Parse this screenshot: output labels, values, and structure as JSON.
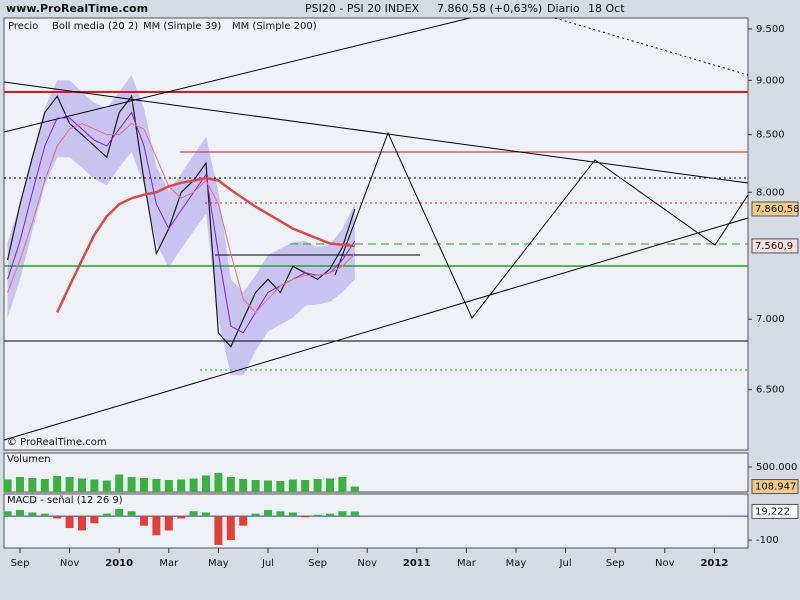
{
  "header": {
    "site": "www.ProRealTime.com",
    "title": "PSI20 - PSI 20 INDEX",
    "quote": "7.860,58 (+0,63%)",
    "period": "Diario",
    "date": "18 Oct"
  },
  "copyright": "© ProRealTime.com",
  "chart_data": [
    {
      "type": "line",
      "log_scale": true,
      "categories": [
        null,
        "Sep",
        null,
        null,
        null,
        "Nov",
        null,
        null,
        null,
        "2010",
        null,
        null,
        null,
        "Mar",
        null,
        null,
        null,
        "May",
        null,
        null,
        null,
        "Jul",
        null,
        null,
        null,
        "Sep",
        null,
        null,
        null,
        "Nov",
        null,
        null,
        null,
        "2011",
        null,
        null,
        null,
        "Mar",
        null,
        null,
        null,
        "May",
        null,
        null,
        null,
        "Jul",
        null,
        null,
        null,
        "Sep",
        null,
        null,
        null,
        "Nov",
        null,
        null,
        null,
        "2012",
        null,
        null
      ],
      "ylim": [
        6100,
        9610
      ],
      "yticks": [
        {
          "value": 9500,
          "label": "9.500"
        },
        {
          "value": 9000,
          "label": "9.000"
        },
        {
          "value": 8500,
          "label": "8.500"
        },
        {
          "value": 8000,
          "label": "8.000"
        },
        {
          "value": 7000,
          "label": "7.000"
        },
        {
          "value": 6500,
          "label": "6.500"
        }
      ],
      "band": {
        "color": "#c9c3f2",
        "upper": [
          7590,
          7900,
          8320,
          8740,
          9000,
          9000,
          8890,
          8790,
          8740,
          8890,
          9050,
          8740,
          8220,
          8010,
          8160,
          8320,
          8480,
          8000,
          7300,
          7200,
          7330,
          7490,
          7540,
          7590,
          7600,
          7550,
          7570,
          7700,
          7900,
          null,
          null,
          null,
          null,
          null,
          null,
          null,
          null,
          null,
          null,
          null,
          null,
          null,
          null,
          null,
          null,
          null,
          null,
          null,
          null,
          null,
          null,
          null,
          null,
          null,
          null,
          null,
          null,
          null,
          null,
          null
        ],
        "lower": [
          7010,
          7300,
          7680,
          8060,
          8300,
          8300,
          8210,
          8110,
          8060,
          8210,
          8350,
          8060,
          7580,
          7390,
          7540,
          7680,
          7820,
          7000,
          6600,
          6600,
          6770,
          6910,
          6960,
          7010,
          7100,
          7110,
          7130,
          7200,
          7300,
          null,
          null,
          null,
          null,
          null,
          null,
          null,
          null,
          null,
          null,
          null,
          null,
          null,
          null,
          null,
          null,
          null,
          null,
          null,
          null,
          null,
          null,
          null,
          null,
          null,
          null,
          null,
          null,
          null,
          null,
          null
        ]
      },
      "series": [
        {
          "name": "Precio",
          "color": "#1a1a1a",
          "width": 1.2,
          "values": [
            7450,
            7900,
            8300,
            8700,
            8850,
            8600,
            8500,
            8400,
            8300,
            8700,
            8850,
            8100,
            7500,
            7700,
            8000,
            8100,
            8250,
            6900,
            6800,
            7000,
            7200,
            7300,
            7200,
            7400,
            7350,
            7300,
            7380,
            7550,
            7860,
            null,
            null,
            null,
            null,
            null,
            null,
            null,
            null,
            null,
            null,
            null,
            null,
            null,
            null,
            null,
            null,
            null,
            null,
            null,
            null,
            null,
            null,
            null,
            null,
            null,
            null,
            null,
            null,
            null,
            null,
            null
          ]
        },
        {
          "name": "Boll media (20 2)",
          "color": "#8a1fc4",
          "width": 1,
          "values": [
            7300,
            7600,
            8000,
            8400,
            8650,
            8650,
            8550,
            8450,
            8400,
            8550,
            8700,
            8400,
            7900,
            7700,
            7850,
            8000,
            8150,
            7500,
            6950,
            6900,
            7050,
            7200,
            7250,
            7300,
            7350,
            7330,
            7350,
            7450,
            7600,
            null,
            null,
            null,
            null,
            null,
            null,
            null,
            null,
            null,
            null,
            null,
            null,
            null,
            null,
            null,
            null,
            null,
            null,
            null,
            null,
            null,
            null,
            null,
            null,
            null,
            null,
            null,
            null,
            null,
            null,
            null
          ]
        },
        {
          "name": "MM (Simple 39)",
          "color": "#e0708a",
          "width": 1,
          "values": [
            7200,
            7450,
            7750,
            8100,
            8400,
            8550,
            8600,
            8550,
            8500,
            8500,
            8600,
            8550,
            8300,
            8050,
            7950,
            8000,
            8100,
            7900,
            7500,
            7150,
            7050,
            7150,
            7250,
            7300,
            7330,
            7330,
            7350,
            7400,
            7500,
            null,
            null,
            null,
            null,
            null,
            null,
            null,
            null,
            null,
            null,
            null,
            null,
            null,
            null,
            null,
            null,
            null,
            null,
            null,
            null,
            null,
            null,
            null,
            null,
            null,
            null,
            null,
            null,
            null,
            null,
            null
          ]
        },
        {
          "name": "MM (Simple 200)",
          "color": "#d84a4a",
          "width": 2.5,
          "values": [
            null,
            null,
            null,
            null,
            7050,
            7250,
            7450,
            7650,
            7800,
            7900,
            7950,
            7980,
            8000,
            8050,
            8080,
            8100,
            8120,
            8100,
            8020,
            7950,
            7880,
            7820,
            7760,
            7700,
            7660,
            7620,
            7580,
            7570,
            7560.9,
            null,
            null,
            null,
            null,
            null,
            null,
            null,
            null,
            null,
            null,
            null,
            null,
            null,
            null,
            null,
            null,
            null,
            null,
            null,
            null,
            null,
            null,
            null,
            null,
            null,
            null,
            null,
            null,
            null,
            null,
            null
          ]
        }
      ],
      "markers": [
        {
          "value": 7860.58,
          "label": "7.860,58",
          "color": "#f2c98a"
        },
        {
          "value": 7560.9,
          "label": "7.560,9",
          "color": "#f4dede"
        }
      ]
    },
    {
      "type": "bar",
      "title": "Volumen",
      "color": "#3cb043",
      "ylim": [
        0,
        780000
      ],
      "yticks": [
        {
          "value": 500000,
          "label": "500.000"
        }
      ],
      "values": [
        250000,
        300000,
        280000,
        260000,
        320000,
        300000,
        270000,
        250000,
        230000,
        350000,
        300000,
        280000,
        260000,
        240000,
        250000,
        270000,
        330000,
        380000,
        300000,
        260000,
        240000,
        230000,
        220000,
        250000,
        240000,
        260000,
        270000,
        300000,
        108947,
        null,
        null,
        null,
        null,
        null,
        null,
        null,
        null,
        null,
        null,
        null,
        null,
        null,
        null,
        null,
        null,
        null,
        null,
        null,
        null,
        null,
        null,
        null,
        null,
        null,
        null,
        null,
        null,
        null,
        null,
        null
      ],
      "markers": [
        {
          "value": 108947,
          "label": "108.947",
          "color": "#f2c98a"
        }
      ]
    },
    {
      "type": "bar",
      "title": "MACD - señal (12 26 9)",
      "color": "#3cb043",
      "negative_color": "#e0403a",
      "ylim": [
        -133,
        92
      ],
      "yticks": [
        -100
      ],
      "values": [
        20,
        25,
        15,
        10,
        -10,
        -50,
        -60,
        -30,
        10,
        30,
        20,
        -40,
        -80,
        -60,
        -10,
        20,
        15,
        -120,
        -100,
        -40,
        10,
        25,
        20,
        15,
        -5,
        5,
        10,
        20,
        19.222,
        null,
        null,
        null,
        null,
        null,
        null,
        null,
        null,
        null,
        null,
        null,
        null,
        null,
        null,
        null,
        null,
        null,
        null,
        null,
        null,
        null,
        null,
        null,
        null,
        null,
        null,
        null,
        null,
        null,
        null,
        null
      ],
      "markers": [
        {
          "value": 19.222,
          "label": "19,222",
          "color": "#ffffff"
        }
      ]
    }
  ]
}
